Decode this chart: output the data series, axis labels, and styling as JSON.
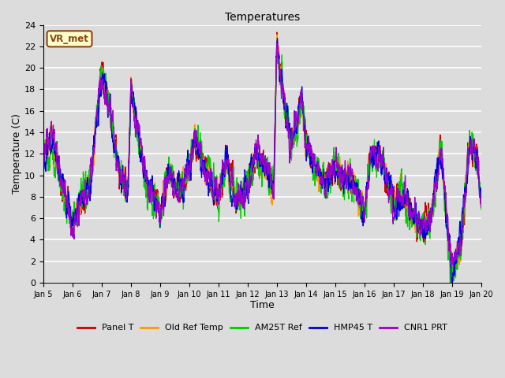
{
  "title": "Temperatures",
  "xlabel": "Time",
  "ylabel": "Temperature (C)",
  "ylim": [
    0,
    24
  ],
  "background_color": "#dcdcdc",
  "plot_bg_color": "#dcdcdc",
  "grid_color": "#ffffff",
  "annotation_text": "VR_met",
  "annotation_box_color": "#ffffcc",
  "annotation_border_color": "#8b4513",
  "xtick_labels": [
    "Jan 5",
    "Jan 6",
    "Jan 7",
    "Jan 8",
    "Jan 9",
    "Jan 10",
    "Jan 11",
    "Jan 12",
    "Jan 13",
    "Jan 14",
    "Jan 15",
    "Jan 16",
    "Jan 17",
    "Jan 18",
    "Jan 19",
    "Jan 20"
  ],
  "series_names": [
    "Panel T",
    "Old Ref Temp",
    "AM25T Ref",
    "HMP45 T",
    "CNR1 PRT"
  ],
  "series_colors": [
    "#cc0000",
    "#ff9900",
    "#00cc00",
    "#0000dd",
    "#9900cc"
  ],
  "n_points": 3000,
  "seed": 12345
}
